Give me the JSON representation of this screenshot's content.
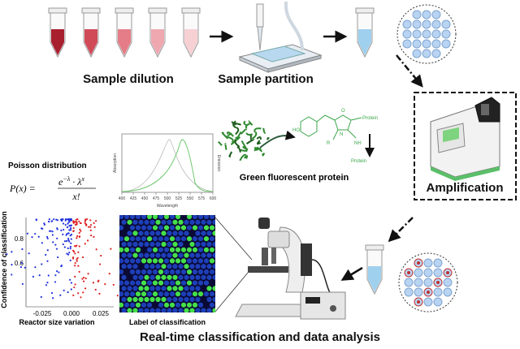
{
  "top": {
    "sample_dilution": "Sample dilution",
    "sample_partition": "Sample partition"
  },
  "amplification": {
    "label": "Amplification"
  },
  "gfp": {
    "label": "Green fluorescent protein",
    "molecule": [
      "HO",
      "Protein",
      "Protein",
      "R",
      "O",
      "N",
      "NH"
    ]
  },
  "spectrum": {
    "y_left": "Absorption",
    "y_right": "Emission",
    "x_label": "Wavelength",
    "xticks": [
      "400",
      "425",
      "450",
      "475",
      "500",
      "525",
      "550",
      "575",
      "600"
    ]
  },
  "poisson": {
    "title": "Poisson distribution",
    "lhs": "P(x) =",
    "base": "e",
    "exp1": "−λ",
    "mid": " · λ",
    "exp2": "x",
    "denominator": "x!"
  },
  "scatter": {
    "y_label": "Confidence of classification",
    "x_label": "Reactor size variation",
    "yticks": [
      "0.6",
      "0.8"
    ],
    "xticks": [
      "-0.025",
      "0.000",
      "0.025"
    ]
  },
  "micrograph": {
    "label": "Label of classification"
  },
  "footer": {
    "title": "Real-time classification and data analysis"
  }
}
